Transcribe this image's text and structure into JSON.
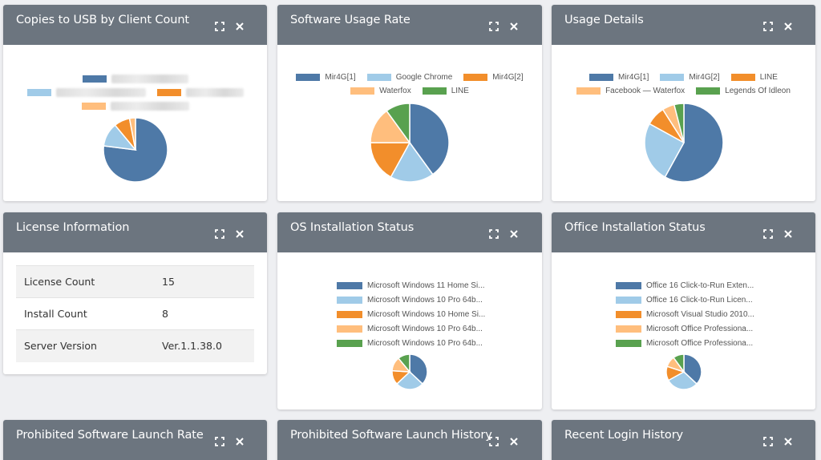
{
  "colors": {
    "header": "#6c757f",
    "blue": "#4e79a7",
    "lightblue": "#a0cbe8",
    "orange": "#f28e2b",
    "peach": "#ffbe7d",
    "green": "#59a14f"
  },
  "cards": {
    "usb": {
      "title": "Copies to USB by Client Count",
      "chart_data": {
        "type": "pie",
        "title": "",
        "legend": "top",
        "slices": [
          {
            "name": "",
            "value": 77,
            "color": "#4e79a7"
          },
          {
            "name": "",
            "value": 12,
            "color": "#a0cbe8"
          },
          {
            "name": "",
            "value": 8,
            "color": "#f28e2b"
          },
          {
            "name": "",
            "value": 3,
            "color": "#ffbe7d"
          }
        ]
      }
    },
    "software_usage": {
      "title": "Software Usage Rate",
      "chart_data": {
        "type": "pie",
        "title": "",
        "legend": "top",
        "slices": [
          {
            "name": "Mir4G[1]",
            "value": 40,
            "color": "#4e79a7"
          },
          {
            "name": "Google Chrome",
            "value": 18,
            "color": "#a0cbe8"
          },
          {
            "name": "Mir4G[2]",
            "value": 17,
            "color": "#f28e2b"
          },
          {
            "name": "Waterfox",
            "value": 15,
            "color": "#ffbe7d"
          },
          {
            "name": "LINE",
            "value": 10,
            "color": "#59a14f"
          }
        ]
      }
    },
    "usage_details": {
      "title": "Usage Details",
      "chart_data": {
        "type": "pie",
        "title": "",
        "legend": "top",
        "slices": [
          {
            "name": "Mir4G[1]",
            "value": 58,
            "color": "#4e79a7"
          },
          {
            "name": "Mir4G[2]",
            "value": 25,
            "color": "#a0cbe8"
          },
          {
            "name": "LINE",
            "value": 8,
            "color": "#f28e2b"
          },
          {
            "name": "Facebook — Waterfox",
            "value": 5,
            "color": "#ffbe7d"
          },
          {
            "name": "Legends Of Idleon",
            "value": 4,
            "color": "#59a14f"
          }
        ]
      }
    },
    "license": {
      "title": "License Information",
      "rows": [
        {
          "label": "License Count",
          "value": "15"
        },
        {
          "label": "Install Count",
          "value": "8"
        },
        {
          "label": "Server Version",
          "value": "Ver.1.1.38.0"
        }
      ]
    },
    "os_install": {
      "title": "OS Installation Status",
      "chart_data": {
        "type": "pie",
        "title": "",
        "legend": "top",
        "slices": [
          {
            "name": "Microsoft Windows 11 Home Si...",
            "value": 37,
            "color": "#4e79a7"
          },
          {
            "name": "Microsoft Windows 10 Pro 64b...",
            "value": 26,
            "color": "#a0cbe8"
          },
          {
            "name": "Microsoft Windows 10 Home Si...",
            "value": 13,
            "color": "#f28e2b"
          },
          {
            "name": "Microsoft Windows 10 Pro 64b...",
            "value": 13,
            "color": "#ffbe7d"
          },
          {
            "name": "Microsoft Windows 10 Pro 64b...",
            "value": 11,
            "color": "#59a14f"
          }
        ]
      }
    },
    "office_install": {
      "title": "Office Installation Status",
      "chart_data": {
        "type": "pie",
        "title": "",
        "legend": "top",
        "slices": [
          {
            "name": "Office 16 Click-to-Run Exten...",
            "value": 37,
            "color": "#4e79a7"
          },
          {
            "name": "Office 16 Click-to-Run Licen...",
            "value": 30,
            "color": "#a0cbe8"
          },
          {
            "name": "Microsoft Visual Studio 2010...",
            "value": 13,
            "color": "#f28e2b"
          },
          {
            "name": "Microsoft Office Professiona...",
            "value": 10,
            "color": "#ffbe7d"
          },
          {
            "name": "Microsoft Office Professiona...",
            "value": 10,
            "color": "#59a14f"
          }
        ]
      }
    },
    "prohibited_rate": {
      "title": "Prohibited Software Launch Rate"
    },
    "prohibited_history": {
      "title": "Prohibited Software Launch History"
    },
    "login_history": {
      "title": "Recent Login History"
    }
  }
}
